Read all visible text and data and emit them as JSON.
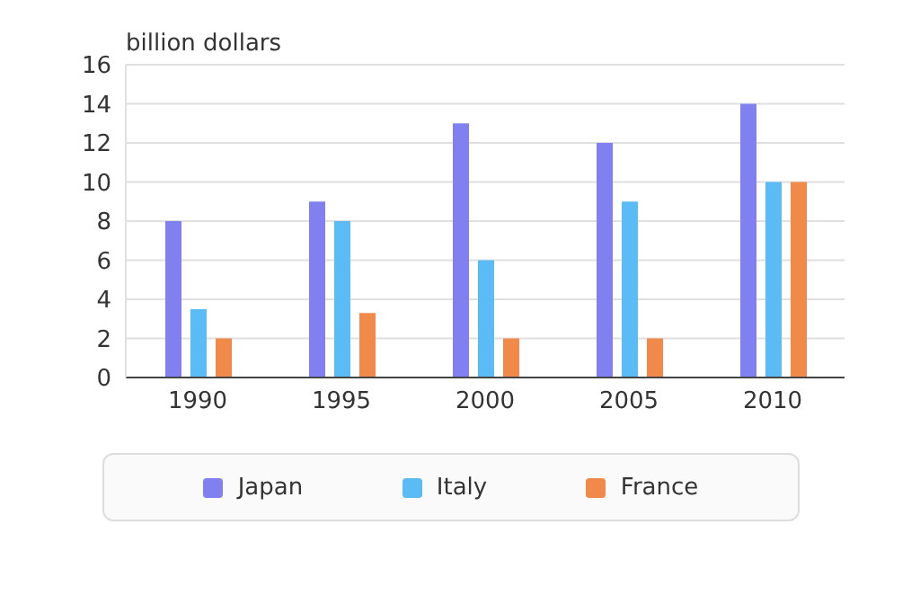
{
  "chart_data": {
    "type": "bar",
    "ylabel": "billion dollars",
    "categories": [
      "1990",
      "1995",
      "2000",
      "2005",
      "2010"
    ],
    "series": [
      {
        "name": "Japan",
        "color": "#8080f0",
        "values": [
          8,
          9,
          13,
          12,
          14
        ]
      },
      {
        "name": "Italy",
        "color": "#5bbcf5",
        "values": [
          3.5,
          8,
          6,
          9,
          10
        ]
      },
      {
        "name": "France",
        "color": "#f0894a",
        "values": [
          2,
          3.3,
          2,
          2,
          10
        ]
      }
    ],
    "ylim": [
      0,
      16
    ],
    "yticks": [
      0,
      2,
      4,
      6,
      8,
      10,
      12,
      14,
      16
    ],
    "grid": "y",
    "legend": "bottom"
  }
}
